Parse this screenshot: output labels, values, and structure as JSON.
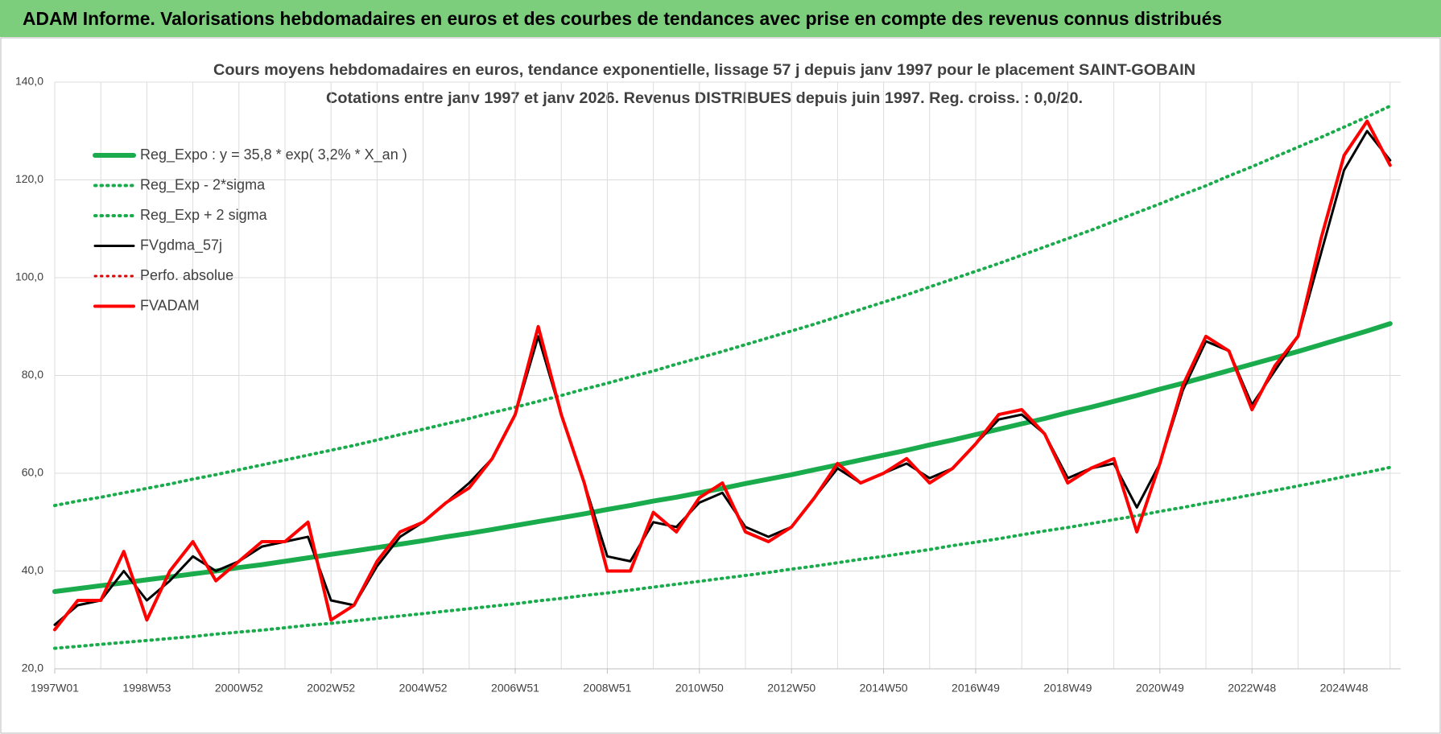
{
  "header": {
    "title": "ADAM Informe. Valorisations hebdomadaires en euros et des courbes de tendances avec prise en compte des revenus connus distribués"
  },
  "chart_data": {
    "type": "line",
    "title": "Cours moyens hebdomadaires en euros, tendance exponentielle, lissage 57 j depuis janv 1997 pour le placement SAINT-GOBAIN",
    "subtitle": "Cotations entre janv 1997 et janv 2026. Revenus DISTRIBUES depuis juin 1997. Reg. croiss. : 0,0/20.",
    "categories": [
      "1997W01",
      null,
      null,
      null,
      "1998W53",
      null,
      null,
      null,
      "2000W52",
      null,
      null,
      null,
      "2002W52",
      null,
      null,
      null,
      "2004W52",
      null,
      null,
      null,
      "2006W51",
      null,
      null,
      null,
      "2008W51",
      null,
      null,
      null,
      "2010W50",
      null,
      null,
      null,
      "2012W50",
      null,
      null,
      null,
      "2014W50",
      null,
      null,
      null,
      "2016W49",
      null,
      null,
      null,
      "2018W49",
      null,
      null,
      null,
      "2020W49",
      null,
      null,
      null,
      "2022W48",
      null,
      null,
      null,
      "2024W48",
      null,
      null
    ],
    "ylim": [
      20,
      140
    ],
    "yticks": [
      {
        "value": 20,
        "label": "20,0"
      },
      {
        "value": 40,
        "label": "40,0"
      },
      {
        "value": 60,
        "label": "60,0"
      },
      {
        "value": 80,
        "label": "80,0"
      },
      {
        "value": 100,
        "label": "100,0"
      },
      {
        "value": 120,
        "label": "120,0"
      },
      {
        "value": 140,
        "label": "140,0"
      }
    ],
    "grid": true,
    "legend": "top-left",
    "series": [
      {
        "name": "Reg_Expo : y = 35,8 * exp( 3,2% *  X_an )",
        "color": "#1aab4c",
        "style": "solid",
        "values": [
          35.8,
          36.4,
          37.0,
          37.6,
          38.2,
          38.8,
          39.4,
          40.0,
          40.7,
          41.3,
          42.0,
          42.7,
          43.4,
          44.1,
          44.8,
          45.5,
          46.2,
          47.0,
          47.7,
          48.5,
          49.3,
          50.1,
          50.9,
          51.7,
          52.6,
          53.4,
          54.3,
          55.1,
          56.0,
          56.9,
          57.9,
          58.8,
          59.7,
          60.7,
          61.7,
          62.7,
          63.7,
          64.7,
          65.8,
          66.8,
          67.9,
          69.0,
          70.1,
          71.2,
          72.4,
          73.5,
          74.7,
          75.9,
          77.2,
          78.4,
          79.7,
          81.0,
          82.3,
          83.6,
          84.9,
          86.3,
          87.7,
          89.1,
          90.6
        ]
      },
      {
        "name": "Reg_Exp - 2*sigma",
        "color": "#1aab4c",
        "style": "dotted",
        "values": [
          24.2,
          24.6,
          25.0,
          25.4,
          25.8,
          26.2,
          26.6,
          27.1,
          27.5,
          27.9,
          28.4,
          28.9,
          29.3,
          29.8,
          30.3,
          30.8,
          31.3,
          31.8,
          32.3,
          32.8,
          33.3,
          33.9,
          34.4,
          35.0,
          35.5,
          36.1,
          36.7,
          37.3,
          37.9,
          38.5,
          39.1,
          39.7,
          40.4,
          41.0,
          41.7,
          42.4,
          43.0,
          43.7,
          44.4,
          45.2,
          45.9,
          46.6,
          47.4,
          48.2,
          48.9,
          49.7,
          50.5,
          51.3,
          52.2,
          53.0,
          53.9,
          54.7,
          55.6,
          56.5,
          57.4,
          58.3,
          59.3,
          60.2,
          61.2
        ]
      },
      {
        "name": "Reg_Exp + 2 sigma",
        "color": "#1aab4c",
        "style": "dotted",
        "values": [
          53.4,
          54.3,
          55.1,
          56.0,
          56.9,
          57.8,
          58.8,
          59.7,
          60.7,
          61.7,
          62.7,
          63.7,
          64.7,
          65.7,
          66.8,
          67.9,
          69.0,
          70.1,
          71.2,
          72.4,
          73.5,
          74.7,
          75.9,
          77.2,
          78.4,
          79.7,
          80.9,
          82.3,
          83.6,
          84.9,
          86.3,
          87.7,
          89.1,
          90.5,
          92.0,
          93.5,
          95.0,
          96.5,
          98.1,
          99.7,
          101.3,
          102.9,
          104.6,
          106.3,
          108.0,
          109.7,
          111.5,
          113.3,
          115.1,
          117.0,
          118.8,
          120.8,
          122.7,
          124.7,
          126.7,
          128.7,
          130.8,
          132.9,
          135.1
        ]
      },
      {
        "name": "FVgdma_57j",
        "color": "#000000",
        "style": "solid",
        "values": [
          29,
          33,
          34,
          40,
          34,
          38,
          43,
          40,
          42,
          45,
          46,
          47,
          34,
          33,
          41,
          47,
          50,
          54,
          58,
          63,
          72,
          88,
          72,
          58,
          43,
          42,
          50,
          49,
          54,
          56,
          49,
          47,
          49,
          55,
          61,
          58,
          60,
          62,
          59,
          61,
          66,
          71,
          72,
          68,
          59,
          61,
          62,
          53,
          62,
          77,
          87,
          85,
          74,
          81,
          88,
          105,
          122,
          130,
          124
        ]
      },
      {
        "name": "Perfo. absolue",
        "color": "#e00000",
        "style": "dotted",
        "values": [
          null,
          null,
          null,
          null,
          null,
          null,
          null,
          null,
          null,
          null,
          null,
          null,
          null,
          null,
          null,
          null,
          null,
          null,
          null,
          null,
          null,
          null,
          null,
          null,
          null,
          null,
          null,
          null,
          null,
          null,
          null,
          null,
          null,
          null,
          null,
          null,
          null,
          null,
          null,
          null,
          null,
          null,
          null,
          null,
          null,
          null,
          null,
          null,
          null,
          null,
          null,
          null,
          null,
          null,
          null,
          null,
          null,
          null,
          null
        ]
      },
      {
        "name": "FVADAM",
        "color": "#ff0000",
        "style": "solid",
        "values": [
          28,
          34,
          34,
          44,
          30,
          40,
          46,
          38,
          42,
          46,
          46,
          50,
          30,
          33,
          42,
          48,
          50,
          54,
          57,
          63,
          72,
          90,
          72,
          58,
          40,
          40,
          52,
          48,
          55,
          58,
          48,
          46,
          49,
          55,
          62,
          58,
          60,
          63,
          58,
          61,
          66,
          72,
          73,
          68,
          58,
          61,
          63,
          48,
          62,
          78,
          88,
          85,
          73,
          82,
          88,
          108,
          125,
          132,
          123
        ]
      }
    ]
  }
}
